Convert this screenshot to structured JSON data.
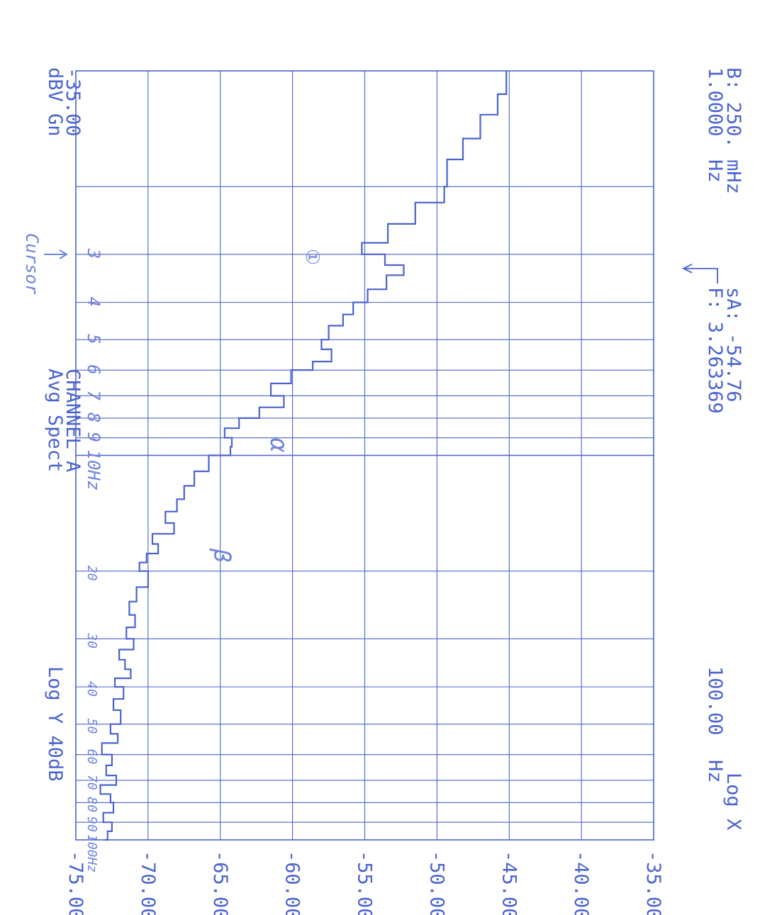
{
  "chart_data": {
    "type": "line",
    "instrument": {
      "channel": "CHANNEL A",
      "measurement": "Avg Spect",
      "top_ref": "-35.00",
      "top_ref_unit": "dBV Gn",
      "y_scale": "Log Y 40dB",
      "x_start": "1.0000",
      "x_start_unit": "Hz",
      "x_end": "100.00",
      "x_end_unit": "Hz",
      "x_scale": "Log X",
      "bandwidth": "B: 250.",
      "bandwidth_unit": "mHz",
      "marker_freq": "F: 3.263369",
      "marker_amp": "sA: -54.76"
    },
    "ylabel": "dBV",
    "ylim": [
      -75,
      -35
    ],
    "xlim": [
      1,
      100
    ],
    "x_scale": "log",
    "y_ticks": [
      "-35.00",
      "-40.00",
      "-45.00",
      "-50.00",
      "-55.00",
      "-60.00",
      "-65.00",
      "-70.00",
      "-75.00"
    ],
    "x": [
      1.0,
      1.15,
      1.3,
      1.5,
      1.7,
      2.0,
      2.2,
      2.5,
      2.8,
      3.0,
      3.2,
      3.4,
      3.7,
      4.0,
      4.3,
      4.6,
      5.0,
      5.3,
      5.7,
      6.0,
      6.5,
      7.0,
      7.5,
      8.0,
      8.5,
      9.0,
      9.5,
      10.0,
      11,
      12,
      13,
      14,
      15,
      16,
      17,
      18,
      19,
      20,
      22,
      24,
      26,
      28,
      30,
      32,
      34,
      36,
      38,
      40,
      43,
      46,
      50,
      53,
      56,
      60,
      64,
      68,
      72,
      76,
      80,
      85,
      90,
      95,
      100
    ],
    "y": [
      -45.2,
      -45.8,
      -47.0,
      -48.2,
      -49.3,
      -49.5,
      -51.5,
      -53.4,
      -55.2,
      -53.6,
      -52.3,
      -53.5,
      -54.8,
      -55.8,
      -56.5,
      -57.5,
      -58.0,
      -57.3,
      -58.6,
      -60.1,
      -61.5,
      -60.6,
      -62.3,
      -63.7,
      -64.7,
      -64.2,
      -64.3,
      -65.8,
      -66.8,
      -67.5,
      -68.0,
      -68.8,
      -68.2,
      -69.7,
      -69.3,
      -70.1,
      -70.6,
      -70.0,
      -70.8,
      -71.3,
      -70.9,
      -71.5,
      -71.0,
      -72.0,
      -71.6,
      -71.2,
      -72.3,
      -71.7,
      -72.4,
      -71.9,
      -72.6,
      -72.1,
      -73.2,
      -72.5,
      -72.9,
      -72.2,
      -73.3,
      -72.6,
      -72.4,
      -73.1,
      -72.5,
      -72.8,
      -73.0
    ],
    "annotations": [
      "Cursor",
      "①",
      "α",
      "β",
      "3",
      "4",
      "5",
      "6",
      "7",
      "8",
      "9",
      "10Hz",
      "20",
      "30",
      "40",
      "50",
      "60",
      "70",
      "80",
      "90",
      "100Hz"
    ],
    "grid": true,
    "colors": {
      "ink": "#4b63cf",
      "handwriting": "#6f84dc"
    }
  }
}
